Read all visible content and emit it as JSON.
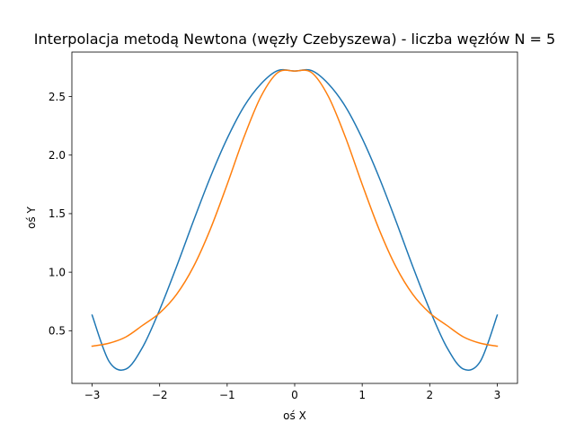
{
  "chart_data": {
    "type": "line",
    "title": "Interpolacja metodą Newtona (węzły Czebyszewa) - liczba węzłów N = 5",
    "xlabel": "oś X",
    "ylabel": "oś Y",
    "xlim": [
      -3.3,
      3.3
    ],
    "ylim": [
      0.05,
      2.88
    ],
    "xticks": [
      -3,
      -2,
      -1,
      0,
      1,
      2,
      3
    ],
    "xtick_labels": [
      "−3",
      "−2",
      "−1",
      "0",
      "1",
      "2",
      "3"
    ],
    "yticks": [
      0.5,
      1.0,
      1.5,
      2.0,
      2.5
    ],
    "ytick_labels": [
      "0.5",
      "1.0",
      "1.5",
      "2.0",
      "2.5"
    ],
    "grid": false,
    "series": [
      {
        "color": "#1f77b4",
        "x": [
          -3.0,
          -2.75,
          -2.5,
          -2.25,
          -2.0,
          -1.75,
          -1.5,
          -1.25,
          -1.0,
          -0.75,
          -0.5,
          -0.25,
          0.0,
          0.25,
          0.5,
          0.75,
          1.0,
          1.25,
          1.5,
          1.75,
          2.0,
          2.25,
          2.5,
          2.75,
          3.0
        ],
        "y": [
          0.633,
          0.239,
          0.172,
          0.362,
          0.679,
          1.047,
          1.436,
          1.81,
          2.142,
          2.416,
          2.608,
          2.722,
          2.718,
          2.722,
          2.608,
          2.416,
          2.142,
          1.81,
          1.436,
          1.047,
          0.679,
          0.362,
          0.172,
          0.239,
          0.633
        ]
      },
      {
        "color": "#ff7f0e",
        "x": [
          -3.0,
          -2.75,
          -2.5,
          -2.25,
          -2.0,
          -1.75,
          -1.5,
          -1.25,
          -1.0,
          -0.75,
          -0.5,
          -0.25,
          0.0,
          0.25,
          0.5,
          0.75,
          1.0,
          1.25,
          1.5,
          1.75,
          2.0,
          2.25,
          2.5,
          2.75,
          3.0
        ],
        "y": [
          0.368,
          0.393,
          0.447,
          0.547,
          0.652,
          0.81,
          1.046,
          1.366,
          1.75,
          2.155,
          2.5,
          2.705,
          2.718,
          2.705,
          2.5,
          2.155,
          1.75,
          1.366,
          1.046,
          0.81,
          0.652,
          0.547,
          0.447,
          0.393,
          0.368
        ]
      }
    ]
  }
}
